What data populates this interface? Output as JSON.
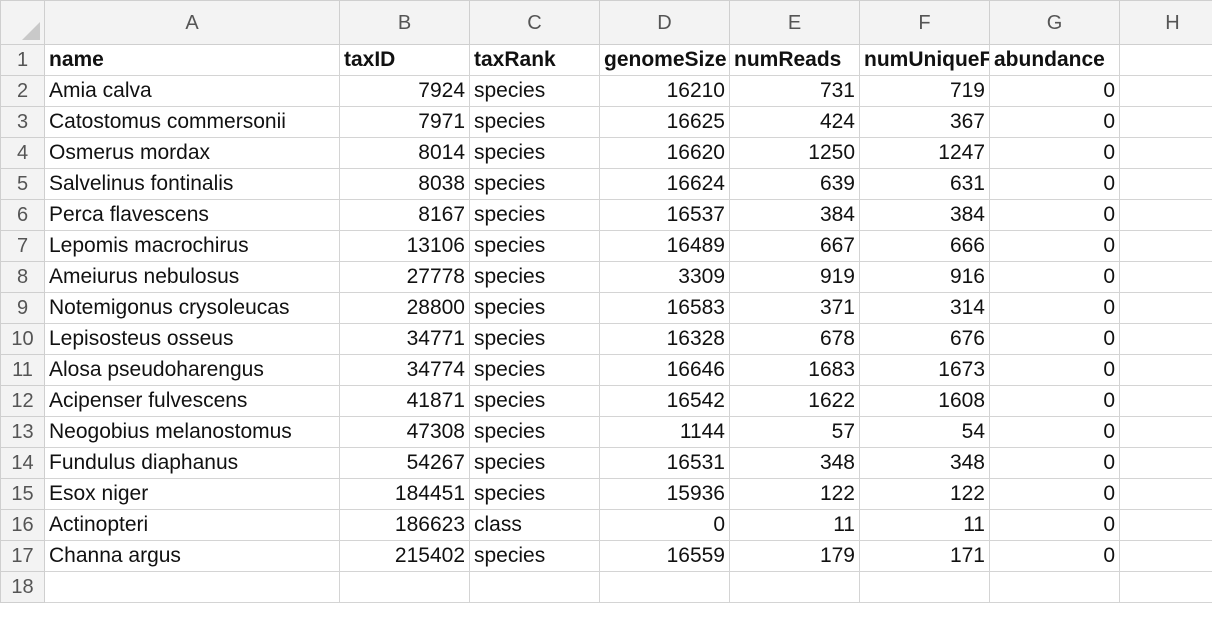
{
  "columns": [
    "A",
    "B",
    "C",
    "D",
    "E",
    "F",
    "G",
    "H"
  ],
  "row_numbers": [
    "1",
    "2",
    "3",
    "4",
    "5",
    "6",
    "7",
    "8",
    "9",
    "10",
    "11",
    "12",
    "13",
    "14",
    "15",
    "16",
    "17",
    "18"
  ],
  "header": {
    "name": "name",
    "taxID": "taxID",
    "taxRank": "taxRank",
    "genomeSize": "genomeSize",
    "numReads": "numReads",
    "numUnique": "numUniqueF",
    "abundance": "abundance"
  },
  "rows": [
    {
      "name": "Amia calva",
      "taxID": "7924",
      "taxRank": "species",
      "genomeSize": "16210",
      "numReads": "731",
      "numUnique": "719",
      "abundance": "0"
    },
    {
      "name": "Catostomus commersonii",
      "taxID": "7971",
      "taxRank": "species",
      "genomeSize": "16625",
      "numReads": "424",
      "numUnique": "367",
      "abundance": "0"
    },
    {
      "name": "Osmerus mordax",
      "taxID": "8014",
      "taxRank": "species",
      "genomeSize": "16620",
      "numReads": "1250",
      "numUnique": "1247",
      "abundance": "0"
    },
    {
      "name": "Salvelinus fontinalis",
      "taxID": "8038",
      "taxRank": "species",
      "genomeSize": "16624",
      "numReads": "639",
      "numUnique": "631",
      "abundance": "0"
    },
    {
      "name": "Perca flavescens",
      "taxID": "8167",
      "taxRank": "species",
      "genomeSize": "16537",
      "numReads": "384",
      "numUnique": "384",
      "abundance": "0"
    },
    {
      "name": "Lepomis macrochirus",
      "taxID": "13106",
      "taxRank": "species",
      "genomeSize": "16489",
      "numReads": "667",
      "numUnique": "666",
      "abundance": "0"
    },
    {
      "name": "Ameiurus nebulosus",
      "taxID": "27778",
      "taxRank": "species",
      "genomeSize": "3309",
      "numReads": "919",
      "numUnique": "916",
      "abundance": "0"
    },
    {
      "name": "Notemigonus crysoleucas",
      "taxID": "28800",
      "taxRank": "species",
      "genomeSize": "16583",
      "numReads": "371",
      "numUnique": "314",
      "abundance": "0"
    },
    {
      "name": "Lepisosteus osseus",
      "taxID": "34771",
      "taxRank": "species",
      "genomeSize": "16328",
      "numReads": "678",
      "numUnique": "676",
      "abundance": "0"
    },
    {
      "name": "Alosa pseudoharengus",
      "taxID": "34774",
      "taxRank": "species",
      "genomeSize": "16646",
      "numReads": "1683",
      "numUnique": "1673",
      "abundance": "0"
    },
    {
      "name": "Acipenser fulvescens",
      "taxID": "41871",
      "taxRank": "species",
      "genomeSize": "16542",
      "numReads": "1622",
      "numUnique": "1608",
      "abundance": "0"
    },
    {
      "name": "Neogobius melanostomus",
      "taxID": "47308",
      "taxRank": "species",
      "genomeSize": "1144",
      "numReads": "57",
      "numUnique": "54",
      "abundance": "0"
    },
    {
      "name": "Fundulus diaphanus",
      "taxID": "54267",
      "taxRank": "species",
      "genomeSize": "16531",
      "numReads": "348",
      "numUnique": "348",
      "abundance": "0"
    },
    {
      "name": "Esox niger",
      "taxID": "184451",
      "taxRank": "species",
      "genomeSize": "15936",
      "numReads": "122",
      "numUnique": "122",
      "abundance": "0"
    },
    {
      "name": "Actinopteri",
      "taxID": "186623",
      "taxRank": "class",
      "genomeSize": "0",
      "numReads": "11",
      "numUnique": "11",
      "abundance": "0"
    },
    {
      "name": "Channa argus",
      "taxID": "215402",
      "taxRank": "species",
      "genomeSize": "16559",
      "numReads": "179",
      "numUnique": "171",
      "abundance": "0"
    }
  ]
}
